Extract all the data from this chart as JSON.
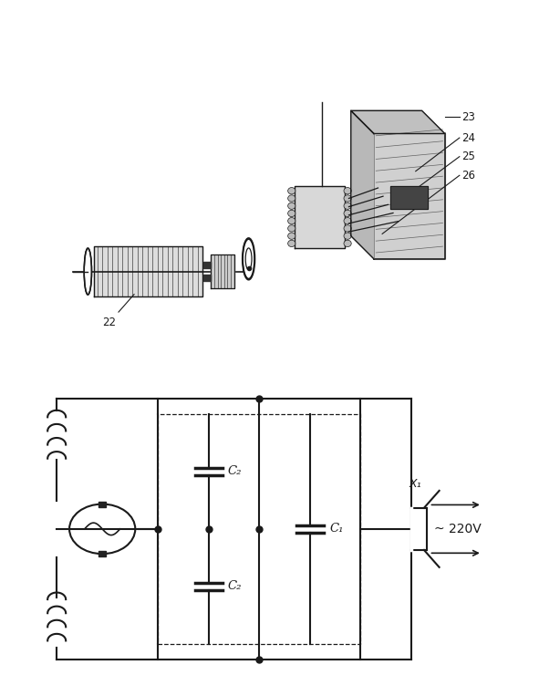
{
  "bg_color": "#ffffff",
  "line_color": "#1a1a1a",
  "fig_width": 5.91,
  "fig_height": 7.63,
  "circuit_voltage": "~ 220V",
  "circuit_x1": "X₁",
  "cap_c1": "C₁",
  "cap_c2": "C₂",
  "label_22": "22",
  "label_23": "23",
  "label_24": "24",
  "label_25": "25",
  "label_26": "26"
}
